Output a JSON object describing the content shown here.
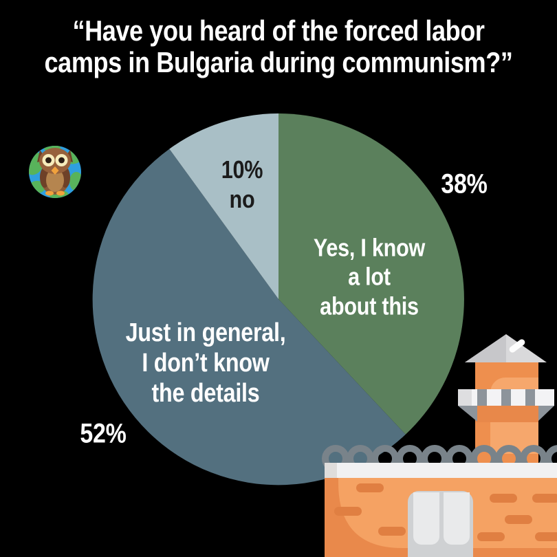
{
  "title": {
    "line1": "“Have you heard of the forced labor",
    "line2": "camps in Bulgaria during communism?”"
  },
  "chart_data": {
    "type": "pie",
    "title": "Have you heard of the forced labor camps in Bulgaria during communism?",
    "start_angle_deg": 0,
    "direction": "clockwise",
    "legend_position": "labels-on-slices",
    "slices": [
      {
        "id": "yes",
        "label": "Yes, I know a lot about this",
        "display_lines": [
          "Yes, I know",
          "a lot",
          "about this"
        ],
        "value": 38,
        "pct_label": "38%",
        "color": "#5B805C",
        "label_color": "#ffffff"
      },
      {
        "id": "general",
        "label": "Just in general, I don’t know the details",
        "display_lines": [
          "Just in general,",
          "I don’t know",
          "the details"
        ],
        "value": 52,
        "pct_label": "52%",
        "color": "#53707F",
        "label_color": "#ffffff"
      },
      {
        "id": "no",
        "label": "no",
        "display_lines": [
          "no"
        ],
        "value": 10,
        "pct_label": "10%",
        "color": "#A9BFC6",
        "label_color": "#1b1b1b"
      }
    ]
  },
  "icons": {
    "logo": "owl-on-globe-logo",
    "illustration": "prison-watchtower-with-barbed-wire-wall"
  },
  "colors": {
    "background": "#000000",
    "text_light": "#ffffff",
    "text_dark": "#1b1b1b",
    "wall_light": "#f5a263",
    "wall_dark": "#e9894b",
    "tower_orange": "#ee8f4e",
    "barbed_wire_gray": "#79838a",
    "roof_gray": "#d9d9db"
  }
}
